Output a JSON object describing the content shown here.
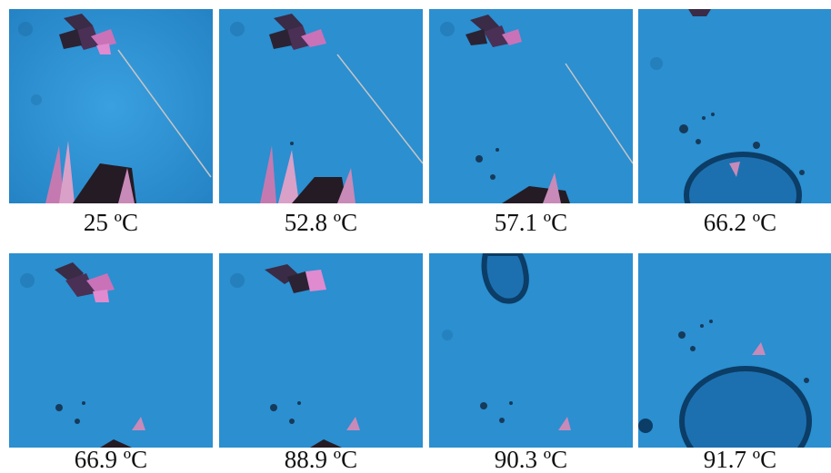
{
  "panels": [
    {
      "label": "25 ºC"
    },
    {
      "label": "52.8 ºC"
    },
    {
      "label": "57.1 ºC"
    },
    {
      "label": "66.2 ºC"
    },
    {
      "label": "66.9 ºC"
    },
    {
      "label": "88.9 ºC"
    },
    {
      "label": "90.3 ºC"
    },
    {
      "label": "91.7 ºC"
    }
  ],
  "colors": {
    "background_blue": "#2b8fd0",
    "crystal_dark": "#2a2a3a",
    "crystal_pink": "#d07ac0",
    "droplet_edge": "#0b3d66"
  }
}
